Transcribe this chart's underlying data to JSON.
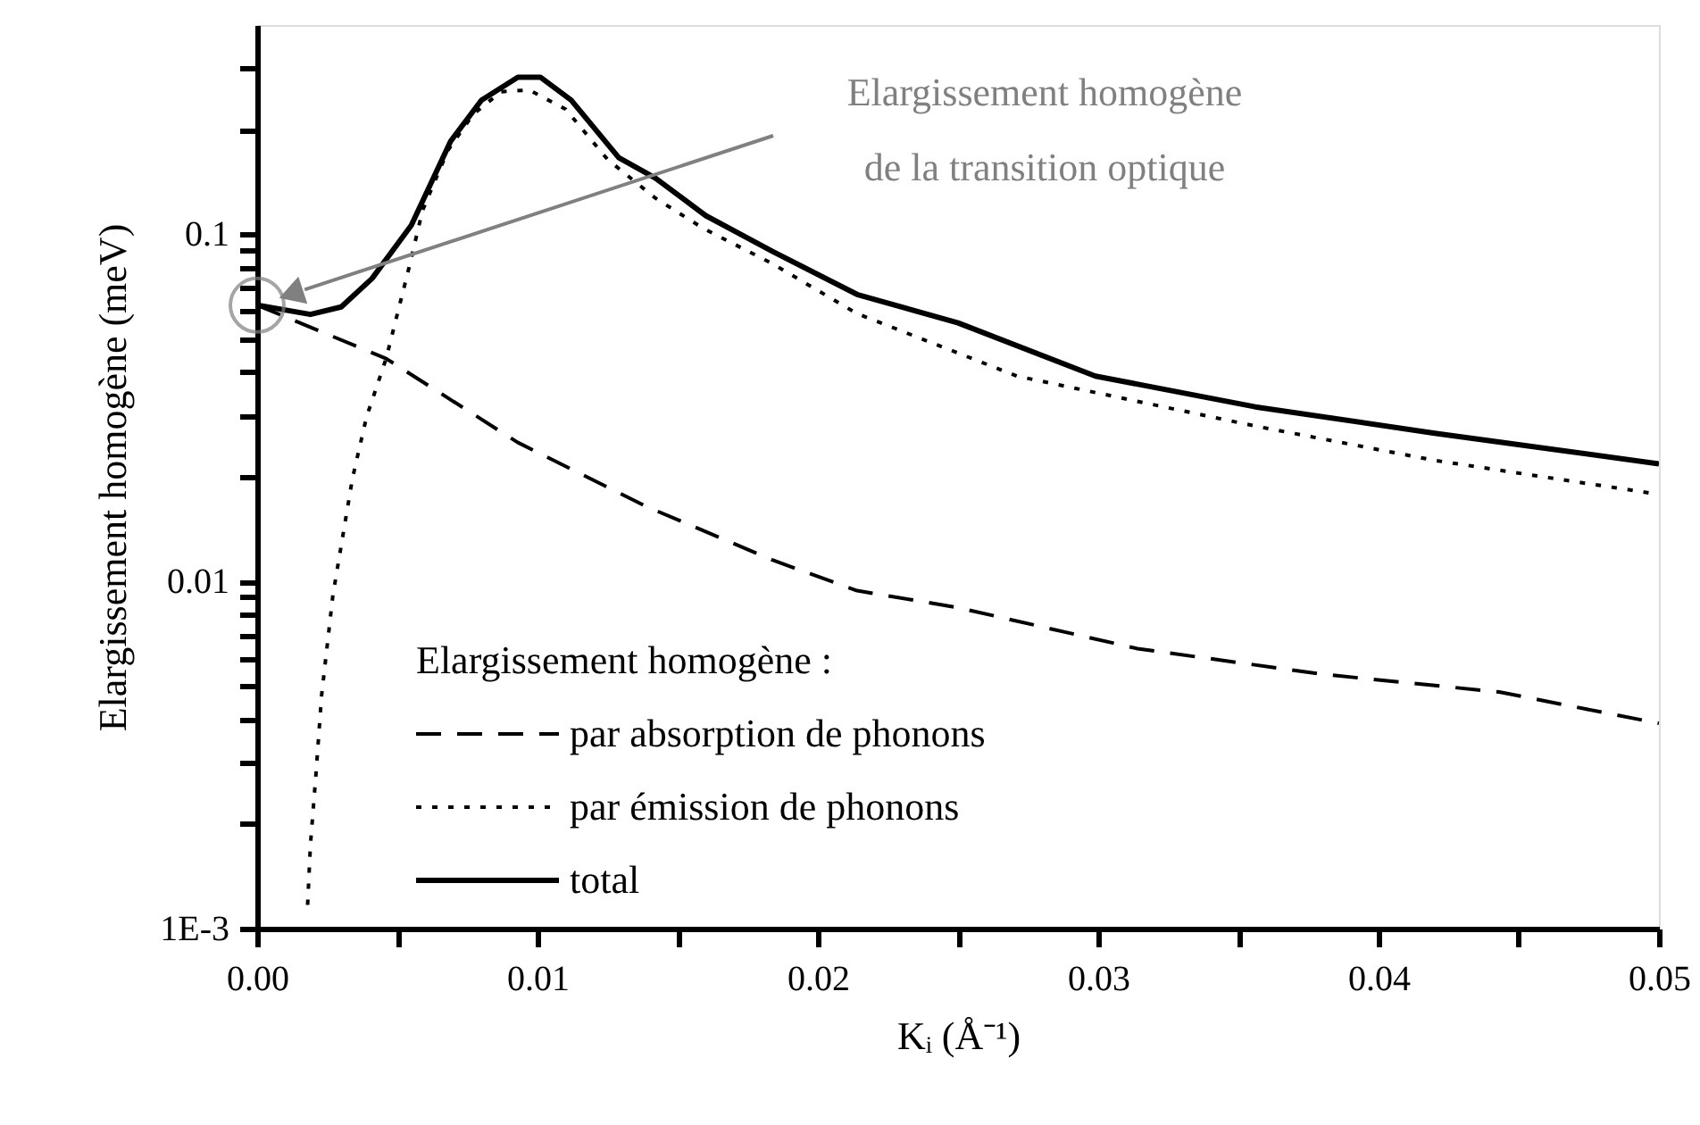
{
  "chart_data": {
    "type": "line",
    "xlabel": "Kᵢ (Å⁻¹)",
    "ylabel": "Elargissement homogène (meV)",
    "legend_title": "Elargissement homogène :",
    "xlim": [
      0,
      0.05
    ],
    "ylim": [
      0.001,
      0.4
    ],
    "log": "y",
    "grid": false,
    "legend": "bottom left",
    "xticks": [
      {
        "value": 0,
        "label": "0.00"
      },
      {
        "value": 0.005,
        "label": null
      },
      0.01,
      {
        "value": 0.015,
        "label": null
      },
      0.02,
      {
        "value": 0.025,
        "label": null
      },
      0.03,
      {
        "value": 0.035,
        "label": null
      },
      0.04,
      {
        "value": 0.045,
        "label": null
      },
      0.05
    ],
    "yticks": [
      {
        "value": 0.001,
        "label": "1E-3"
      },
      {
        "value": 0.002,
        "label": null
      },
      {
        "value": 0.003,
        "label": null
      },
      {
        "value": 0.004,
        "label": null
      },
      {
        "value": 0.005,
        "label": null
      },
      {
        "value": 0.006,
        "label": null
      },
      {
        "value": 0.007,
        "label": null
      },
      {
        "value": 0.008,
        "label": null
      },
      {
        "value": 0.009,
        "label": null
      },
      0.01,
      {
        "value": 0.02,
        "label": null
      },
      {
        "value": 0.03,
        "label": null
      },
      {
        "value": 0.04,
        "label": null
      },
      {
        "value": 0.05,
        "label": null
      },
      {
        "value": 0.06,
        "label": null
      },
      {
        "value": 0.07,
        "label": null
      },
      {
        "value": 0.08,
        "label": null
      },
      {
        "value": 0.09,
        "label": null
      },
      0.1,
      {
        "value": 0.2,
        "label": null
      },
      {
        "value": 0.3,
        "label": null
      }
    ],
    "annotations": [
      "Elargissement homogène\nde la transition optique"
    ],
    "series": [
      {
        "name": "par absorption de phonons",
        "color": "#000000",
        "line_style": "dashed",
        "x": [
          0,
          0.0046,
          0.0093,
          0.0139,
          0.0184,
          0.0214,
          0.025,
          0.0314,
          0.038,
          0.0443,
          0.05
        ],
        "values": [
          0.0624,
          0.0438,
          0.0251,
          0.0164,
          0.0115,
          0.0094,
          0.0084,
          0.0064,
          0.0054,
          0.0048,
          0.0039
        ]
      },
      {
        "name": "par émission de phonons",
        "color": "#000000",
        "line_style": "dotted",
        "x": [
          0.0018,
          0.0019,
          0.0021,
          0.0023,
          0.0027,
          0.0034,
          0.0039,
          0.0046,
          0.0054,
          0.0059,
          0.0068,
          0.0077,
          0.0087,
          0.0097,
          0.011,
          0.0125,
          0.0142,
          0.0159,
          0.0184,
          0.0214,
          0.0271,
          0.0356,
          0.042,
          0.05
        ],
        "values": [
          0.00117,
          0.00174,
          0.0028,
          0.0047,
          0.0091,
          0.0198,
          0.0297,
          0.0438,
          0.079,
          0.117,
          0.174,
          0.221,
          0.257,
          0.26,
          0.229,
          0.164,
          0.127,
          0.104,
          0.082,
          0.059,
          0.039,
          0.028,
          0.0223,
          0.0178
        ]
      },
      {
        "name": "total",
        "color": "#000000",
        "line_style": "solid",
        "x": [
          0,
          0.0019,
          0.003,
          0.0041,
          0.0055,
          0.0069,
          0.008,
          0.0093,
          0.0101,
          0.0112,
          0.0129,
          0.0142,
          0.016,
          0.0184,
          0.0214,
          0.025,
          0.0299,
          0.0356,
          0.042,
          0.05
        ],
        "values": [
          0.0624,
          0.0587,
          0.0617,
          0.0745,
          0.106,
          0.185,
          0.243,
          0.283,
          0.283,
          0.243,
          0.166,
          0.145,
          0.113,
          0.089,
          0.067,
          0.0555,
          0.039,
          0.0318,
          0.0267,
          0.0218
        ]
      }
    ]
  }
}
